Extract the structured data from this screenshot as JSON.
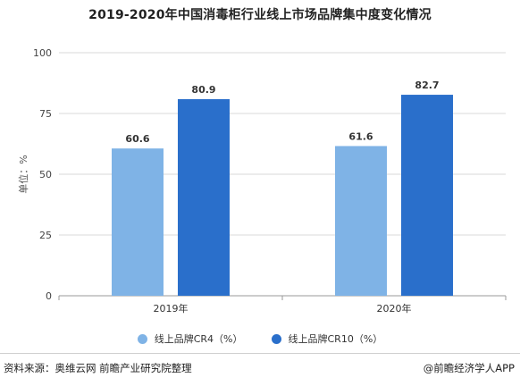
{
  "title": "2019-2020年中国消毒柜行业线上市场品牌集中度变化情况",
  "footer": {
    "source": "资料来源：奥维云网 前瞻产业研究院整理",
    "brand": "@前瞻经济学人APP"
  },
  "colors": {
    "series_cr4": "#7fb3e6",
    "series_cr10": "#2a6fcb",
    "grid": "#d9d9d9",
    "axis": "#999999"
  },
  "chart_data": {
    "type": "bar",
    "title": "2019-2020年中国消毒柜行业线上市场品牌集中度变化情况",
    "ylabel": "单位：%",
    "xlabel": "",
    "categories": [
      "2019年",
      "2020年"
    ],
    "ylim": [
      0,
      100
    ],
    "yticks": [
      0,
      25,
      50,
      75,
      100
    ],
    "grid": true,
    "legend_position": "bottom",
    "series": [
      {
        "name": "线上品牌CR4（%）",
        "values": [
          60.6,
          61.6
        ]
      },
      {
        "name": "线上品牌CR10（%）",
        "values": [
          80.9,
          82.7
        ]
      }
    ]
  }
}
